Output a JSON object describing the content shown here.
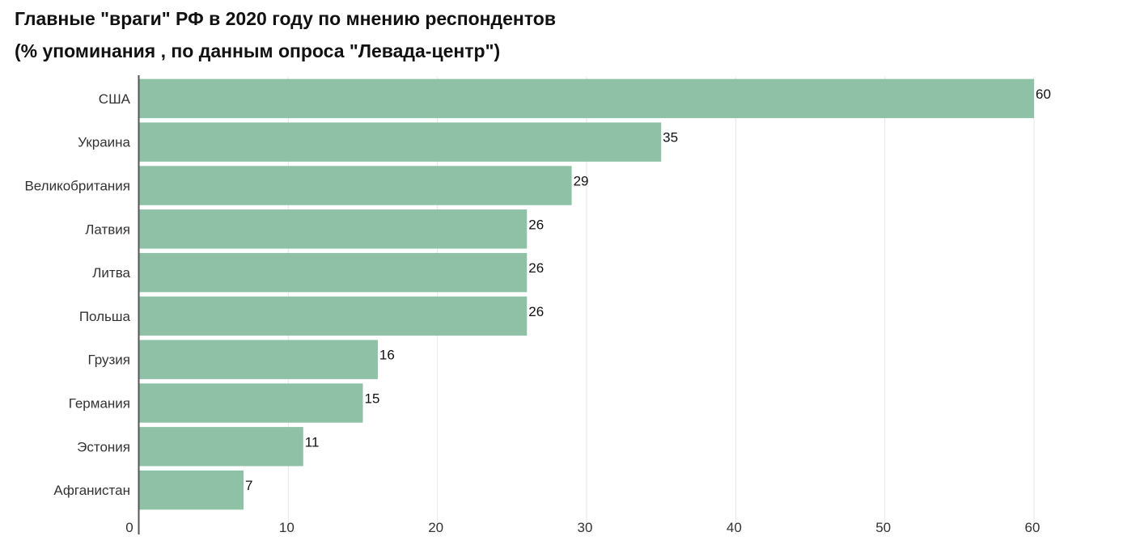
{
  "chart_data": {
    "type": "bar",
    "orientation": "horizontal",
    "title": "Главные \"враги\" РФ в 2020 году по мнению респондентов",
    "subtitle": "(% упоминания , по данным опроса \"Левада-центр\")",
    "categories": [
      "США",
      "Украина",
      "Великобритания",
      "Латвия",
      "Литва",
      "Польша",
      "Грузия",
      "Германия",
      "Эстония",
      "Афганистан"
    ],
    "values": [
      60,
      35,
      29,
      26,
      26,
      26,
      16,
      15,
      11,
      7
    ],
    "xlim": [
      0,
      60
    ],
    "xticks": [
      0,
      10,
      20,
      30,
      40,
      50,
      60
    ],
    "xlabel": "",
    "ylabel": "",
    "grid": true,
    "bar_color": "#8fc1a6",
    "grid_color": "#e6e6e6",
    "axis_color": "#555555"
  }
}
